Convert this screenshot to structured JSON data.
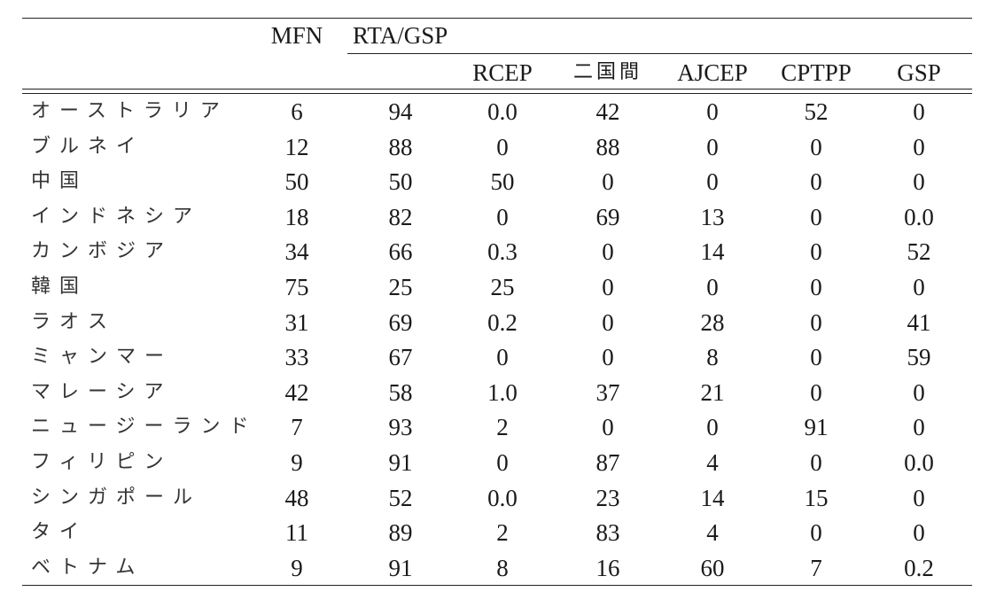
{
  "table": {
    "header": {
      "mfn": "MFN",
      "rta_gsp": "RTA/GSP",
      "sub": [
        "RCEP",
        "二国間",
        "AJCEP",
        "CPTPP",
        "GSP"
      ]
    },
    "rows": [
      {
        "country": "オーストラリア",
        "values": [
          "6",
          "94",
          "0.0",
          "42",
          "0",
          "52",
          "0"
        ]
      },
      {
        "country": "ブルネイ",
        "values": [
          "12",
          "88",
          "0",
          "88",
          "0",
          "0",
          "0"
        ]
      },
      {
        "country": "中国",
        "values": [
          "50",
          "50",
          "50",
          "0",
          "0",
          "0",
          "0"
        ]
      },
      {
        "country": "インドネシア",
        "values": [
          "18",
          "82",
          "0",
          "69",
          "13",
          "0",
          "0.0"
        ]
      },
      {
        "country": "カンボジア",
        "values": [
          "34",
          "66",
          "0.3",
          "0",
          "14",
          "0",
          "52"
        ]
      },
      {
        "country": "韓国",
        "values": [
          "75",
          "25",
          "25",
          "0",
          "0",
          "0",
          "0"
        ]
      },
      {
        "country": "ラオス",
        "values": [
          "31",
          "69",
          "0.2",
          "0",
          "28",
          "0",
          "41"
        ]
      },
      {
        "country": "ミャンマー",
        "values": [
          "33",
          "67",
          "0",
          "0",
          "8",
          "0",
          "59"
        ]
      },
      {
        "country": "マレーシア",
        "values": [
          "42",
          "58",
          "1.0",
          "37",
          "21",
          "0",
          "0"
        ]
      },
      {
        "country": "ニュージーランド",
        "values": [
          "7",
          "93",
          "2",
          "0",
          "0",
          "91",
          "0"
        ]
      },
      {
        "country": "フィリピン",
        "values": [
          "9",
          "91",
          "0",
          "87",
          "4",
          "0",
          "0.0"
        ]
      },
      {
        "country": "シンガポール",
        "values": [
          "48",
          "52",
          "0.0",
          "23",
          "14",
          "15",
          "0"
        ]
      },
      {
        "country": "タイ",
        "values": [
          "11",
          "89",
          "2",
          "83",
          "4",
          "0",
          "0"
        ]
      },
      {
        "country": "ベトナム",
        "values": [
          "9",
          "91",
          "8",
          "16",
          "60",
          "7",
          "0.2"
        ]
      }
    ]
  }
}
